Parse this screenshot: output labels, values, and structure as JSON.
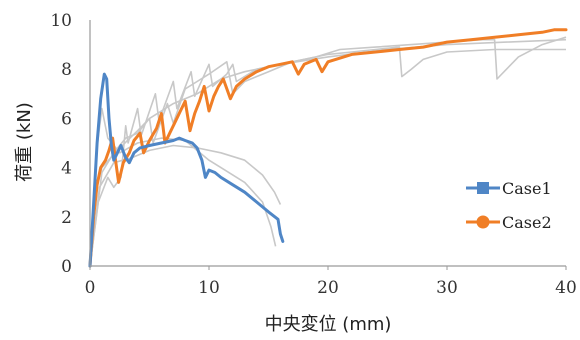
{
  "chart_data": {
    "type": "line",
    "title": "",
    "xlabel": "中央変位 (mm)",
    "ylabel": "荷重 (kN)",
    "xlim": [
      0,
      40
    ],
    "ylim": [
      0,
      10
    ],
    "x_ticks": [
      "0",
      "10",
      "20",
      "30",
      "40"
    ],
    "y_ticks": [
      "0",
      "2",
      "4",
      "6",
      "8",
      "10"
    ],
    "grid": false,
    "legend_position": "right",
    "series": [
      {
        "name": "Case1",
        "color": "#4f86c6",
        "marker": "square",
        "points": [
          [
            0,
            0
          ],
          [
            0.3,
            2.5
          ],
          [
            0.6,
            5.0
          ],
          [
            0.9,
            6.8
          ],
          [
            1.2,
            7.8
          ],
          [
            1.4,
            7.6
          ],
          [
            1.6,
            6.0
          ],
          [
            1.8,
            4.9
          ],
          [
            2.0,
            4.3
          ],
          [
            2.3,
            4.6
          ],
          [
            2.6,
            4.9
          ],
          [
            3.0,
            4.4
          ],
          [
            3.3,
            4.2
          ],
          [
            3.7,
            4.6
          ],
          [
            4.2,
            4.8
          ],
          [
            5.0,
            4.9
          ],
          [
            6.0,
            5.0
          ],
          [
            7.0,
            5.1
          ],
          [
            7.5,
            5.2
          ],
          [
            8.0,
            5.1
          ],
          [
            8.6,
            5.0
          ],
          [
            9.0,
            4.8
          ],
          [
            9.4,
            4.3
          ],
          [
            9.7,
            3.6
          ],
          [
            10.0,
            3.9
          ],
          [
            10.5,
            3.8
          ],
          [
            11.0,
            3.6
          ],
          [
            12.0,
            3.3
          ],
          [
            13.0,
            3.0
          ],
          [
            14.0,
            2.6
          ],
          [
            15.0,
            2.2
          ],
          [
            15.8,
            1.9
          ],
          [
            16.0,
            1.3
          ],
          [
            16.2,
            1.0
          ]
        ]
      },
      {
        "name": "Case2",
        "color": "#f07e26",
        "marker": "circle",
        "points": [
          [
            0,
            0
          ],
          [
            0.3,
            2.0
          ],
          [
            0.6,
            3.3
          ],
          [
            0.9,
            4.0
          ],
          [
            1.3,
            4.3
          ],
          [
            1.6,
            4.7
          ],
          [
            1.9,
            5.2
          ],
          [
            2.2,
            4.1
          ],
          [
            2.4,
            3.4
          ],
          [
            2.8,
            4.2
          ],
          [
            3.3,
            4.6
          ],
          [
            3.7,
            5.1
          ],
          [
            4.2,
            5.4
          ],
          [
            4.5,
            4.6
          ],
          [
            5.0,
            5.1
          ],
          [
            5.6,
            5.6
          ],
          [
            6.0,
            6.2
          ],
          [
            6.3,
            5.0
          ],
          [
            6.7,
            5.4
          ],
          [
            7.1,
            5.8
          ],
          [
            7.6,
            6.3
          ],
          [
            8.0,
            6.7
          ],
          [
            8.4,
            5.5
          ],
          [
            8.8,
            6.2
          ],
          [
            9.2,
            6.7
          ],
          [
            9.6,
            7.3
          ],
          [
            10.0,
            6.3
          ],
          [
            10.4,
            6.9
          ],
          [
            10.8,
            7.3
          ],
          [
            11.2,
            7.6
          ],
          [
            11.8,
            6.8
          ],
          [
            12.3,
            7.3
          ],
          [
            13.0,
            7.6
          ],
          [
            14.0,
            7.9
          ],
          [
            15.0,
            8.1
          ],
          [
            16.0,
            8.2
          ],
          [
            17.0,
            8.3
          ],
          [
            17.5,
            7.8
          ],
          [
            18.0,
            8.2
          ],
          [
            19.0,
            8.4
          ],
          [
            19.5,
            7.9
          ],
          [
            20.0,
            8.3
          ],
          [
            22.0,
            8.6
          ],
          [
            24.0,
            8.7
          ],
          [
            26.0,
            8.8
          ],
          [
            28.0,
            8.9
          ],
          [
            30.0,
            9.1
          ],
          [
            32.0,
            9.2
          ],
          [
            34.0,
            9.3
          ],
          [
            36.0,
            9.4
          ],
          [
            38.0,
            9.5
          ],
          [
            39.0,
            9.6
          ],
          [
            40.0,
            9.6
          ]
        ]
      }
    ],
    "reference_series": [
      {
        "color": "#c8c8c8",
        "points": [
          [
            0,
            0
          ],
          [
            0.5,
            4.5
          ],
          [
            1.0,
            6.4
          ],
          [
            1.5,
            5.2
          ],
          [
            2.5,
            4.6
          ],
          [
            4.0,
            5.0
          ],
          [
            6.0,
            5.2
          ],
          [
            8.0,
            5.1
          ],
          [
            10.0,
            4.3
          ],
          [
            11.0,
            4.0
          ],
          [
            13.0,
            3.4
          ],
          [
            14.5,
            2.6
          ],
          [
            15.2,
            1.6
          ],
          [
            15.6,
            0.8
          ]
        ]
      },
      {
        "color": "#c8c8c8",
        "points": [
          [
            0,
            0
          ],
          [
            0.8,
            3.2
          ],
          [
            2.0,
            4.2
          ],
          [
            3.5,
            4.4
          ],
          [
            5.0,
            4.7
          ],
          [
            7.0,
            4.9
          ],
          [
            9.0,
            4.8
          ],
          [
            11.0,
            4.6
          ],
          [
            13.0,
            4.3
          ],
          [
            14.5,
            3.7
          ],
          [
            15.5,
            3.0
          ],
          [
            16.0,
            2.5
          ]
        ]
      },
      {
        "color": "#c8c8c8",
        "points": [
          [
            0,
            0
          ],
          [
            0.7,
            2.6
          ],
          [
            1.5,
            3.6
          ],
          [
            2.0,
            3.2
          ],
          [
            2.6,
            3.6
          ],
          [
            3.0,
            5.7
          ],
          [
            3.2,
            5.0
          ],
          [
            4.0,
            6.4
          ],
          [
            4.3,
            5.3
          ],
          [
            5.5,
            7.0
          ],
          [
            5.8,
            5.9
          ],
          [
            7.0,
            7.5
          ],
          [
            7.3,
            6.4
          ],
          [
            8.5,
            7.9
          ],
          [
            8.8,
            6.9
          ],
          [
            10.0,
            8.2
          ],
          [
            10.3,
            7.3
          ],
          [
            11.5,
            7.8
          ],
          [
            12.0,
            8.2
          ],
          [
            12.3,
            7.5
          ],
          [
            14.0,
            8.0
          ],
          [
            16.0,
            8.2
          ],
          [
            18.0,
            8.4
          ],
          [
            20.0,
            8.6
          ],
          [
            22.0,
            8.7
          ],
          [
            24.0,
            8.8
          ],
          [
            26.0,
            8.9
          ],
          [
            26.2,
            7.7
          ],
          [
            27.0,
            8.0
          ],
          [
            28.0,
            8.4
          ],
          [
            30.0,
            8.7
          ],
          [
            34.0,
            8.8
          ],
          [
            40.0,
            8.8
          ]
        ]
      },
      {
        "color": "#c8c8c8",
        "points": [
          [
            0,
            0
          ],
          [
            1.0,
            3.8
          ],
          [
            2.0,
            4.6
          ],
          [
            3.0,
            5.2
          ],
          [
            4.0,
            5.4
          ],
          [
            5.0,
            6.0
          ],
          [
            5.3,
            5.0
          ],
          [
            6.5,
            6.6
          ],
          [
            7.0,
            5.8
          ],
          [
            8.0,
            7.2
          ],
          [
            9.0,
            7.5
          ],
          [
            10.0,
            7.8
          ],
          [
            11.5,
            8.3
          ],
          [
            12.0,
            7.0
          ],
          [
            13.0,
            7.5
          ],
          [
            15.0,
            7.9
          ],
          [
            17.0,
            8.3
          ],
          [
            19.0,
            8.5
          ],
          [
            21.0,
            8.8
          ],
          [
            24.0,
            8.9
          ],
          [
            27.0,
            9.0
          ],
          [
            30.0,
            9.1
          ],
          [
            33.0,
            9.2
          ],
          [
            34.0,
            9.2
          ],
          [
            34.2,
            7.6
          ],
          [
            35.0,
            8.0
          ],
          [
            36.0,
            8.5
          ],
          [
            38.0,
            9.0
          ],
          [
            40.0,
            9.3
          ]
        ]
      },
      {
        "color": "#c8c8c8",
        "points": [
          [
            0,
            0
          ],
          [
            0.4,
            3.0
          ],
          [
            1.0,
            4.0
          ],
          [
            2.5,
            4.8
          ],
          [
            4.0,
            5.5
          ],
          [
            5.0,
            6.0
          ],
          [
            7.0,
            6.6
          ],
          [
            9.0,
            7.0
          ],
          [
            11.0,
            7.6
          ],
          [
            13.0,
            7.9
          ],
          [
            16.0,
            8.2
          ],
          [
            20.0,
            8.5
          ],
          [
            25.0,
            8.8
          ],
          [
            30.0,
            9.0
          ],
          [
            35.0,
            9.1
          ],
          [
            40.0,
            9.2
          ]
        ]
      }
    ]
  }
}
